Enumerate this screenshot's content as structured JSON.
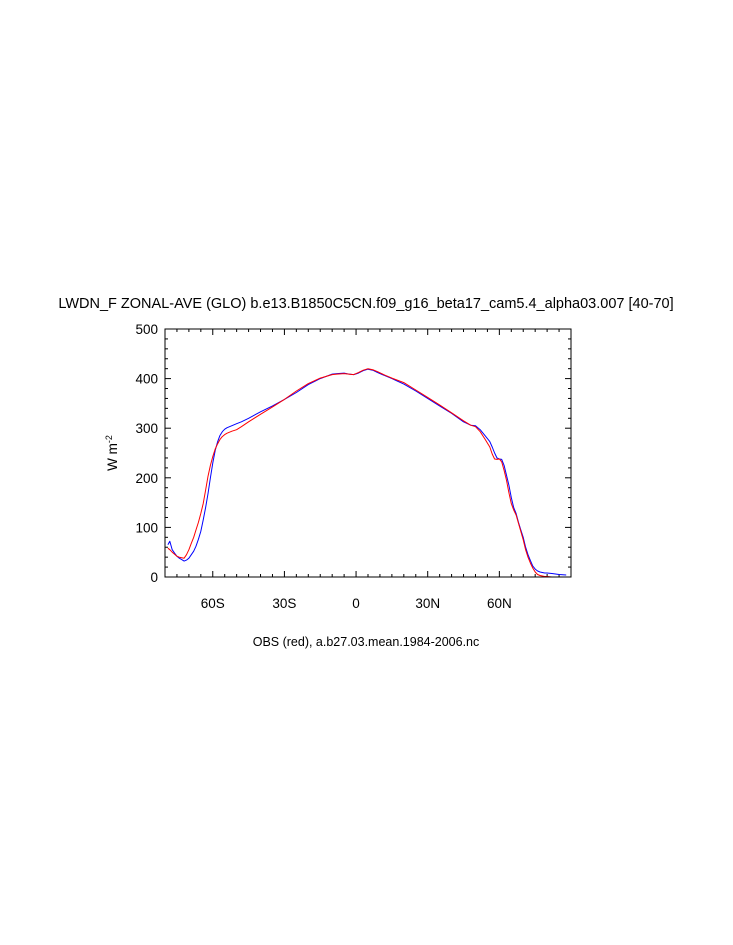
{
  "chart_data": {
    "type": "line",
    "title": "LWDN_F ZONAL-AVE (GLO) b.e13.B1850C5CN.f09_g16_beta17_cam5.4_alpha03.007 [40-70]",
    "ylabel": "W m",
    "ylabel_superscript": "-2",
    "caption": "OBS (red), a.b27.03.mean.1984-2006.nc",
    "xlim": [
      -80,
      90
    ],
    "ylim": [
      0,
      500
    ],
    "xticks": [
      {
        "value": -60,
        "label": "60S"
      },
      {
        "value": -30,
        "label": "30S"
      },
      {
        "value": 0,
        "label": "0"
      },
      {
        "value": 30,
        "label": "30N"
      },
      {
        "value": 60,
        "label": "60N"
      }
    ],
    "yticks": [
      0,
      100,
      200,
      300,
      400,
      500
    ],
    "grid": false,
    "series": [
      {
        "color": "#0000ff",
        "x": [
          -78.8,
          -78,
          -77,
          -76,
          -75,
          -74,
          -73,
          -72,
          -71,
          -70,
          -69,
          -68,
          -67,
          -66,
          -65,
          -64,
          -63,
          -62,
          -61,
          -60,
          -59,
          -58,
          -57,
          -56,
          -55,
          -54,
          -53,
          -52,
          -50,
          -48,
          -45,
          -40,
          -35,
          -30,
          -25,
          -20,
          -15,
          -10,
          -8,
          -5,
          -3,
          -1,
          1,
          3,
          5,
          7,
          9,
          12,
          15,
          20,
          25,
          30,
          35,
          40,
          45,
          48,
          50,
          52,
          54,
          56,
          57,
          58,
          59,
          60,
          61,
          62,
          63,
          64,
          65,
          66,
          67,
          68,
          69,
          70,
          71,
          72,
          73,
          74,
          75,
          76,
          77,
          78,
          79,
          80,
          82,
          85,
          88
        ],
        "y": [
          65,
          72,
          55,
          48,
          42,
          38,
          35,
          32,
          34,
          38,
          45,
          52,
          62,
          76,
          92,
          115,
          140,
          168,
          200,
          230,
          255,
          272,
          285,
          293,
          298,
          301,
          303,
          305,
          309,
          313,
          320,
          333,
          345,
          358,
          372,
          388,
          400,
          409,
          410,
          411,
          409,
          408,
          411,
          416,
          419,
          417,
          412,
          406,
          400,
          389,
          375,
          360,
          345,
          330,
          313,
          306,
          305,
          297,
          285,
          273,
          262,
          250,
          240,
          238,
          237,
          225,
          205,
          185,
          160,
          140,
          128,
          110,
          95,
          80,
          60,
          45,
          33,
          22,
          16,
          12,
          10,
          9,
          8,
          8,
          7,
          5,
          4
        ]
      },
      {
        "color": "#ff0000",
        "x": [
          -78.8,
          -78,
          -77,
          -76,
          -75,
          -74,
          -73,
          -72,
          -71,
          -70,
          -69,
          -68,
          -67,
          -66,
          -65,
          -64,
          -63,
          -62,
          -61,
          -60,
          -59,
          -58,
          -57,
          -56,
          -55,
          -54,
          -53,
          -52,
          -50,
          -48,
          -45,
          -40,
          -35,
          -30,
          -25,
          -20,
          -15,
          -10,
          -8,
          -5,
          -3,
          -1,
          1,
          3,
          5,
          7,
          9,
          12,
          15,
          20,
          25,
          30,
          35,
          40,
          45,
          48,
          50,
          52,
          54,
          56,
          57,
          58,
          59,
          60,
          61,
          62,
          63,
          64,
          65,
          66,
          67,
          68,
          69,
          70,
          71,
          72,
          73,
          74,
          75,
          76,
          77,
          78,
          79,
          80,
          82,
          85,
          88
        ],
        "y": [
          58,
          55,
          50,
          46,
          42,
          40,
          39,
          38,
          45,
          55,
          68,
          80,
          95,
          110,
          128,
          148,
          175,
          203,
          225,
          243,
          258,
          268,
          277,
          283,
          287,
          290,
          292,
          294,
          297,
          303,
          313,
          328,
          343,
          358,
          375,
          390,
          401,
          408,
          409,
          410,
          409,
          408,
          412,
          417,
          420,
          418,
          414,
          407,
          401,
          392,
          377,
          362,
          347,
          331,
          315,
          306,
          303,
          293,
          278,
          262,
          248,
          238,
          237,
          238,
          232,
          215,
          195,
          170,
          148,
          135,
          125,
          108,
          92,
          75,
          55,
          40,
          28,
          18,
          10,
          5,
          3,
          2,
          1,
          1,
          0,
          0,
          0
        ]
      }
    ]
  }
}
